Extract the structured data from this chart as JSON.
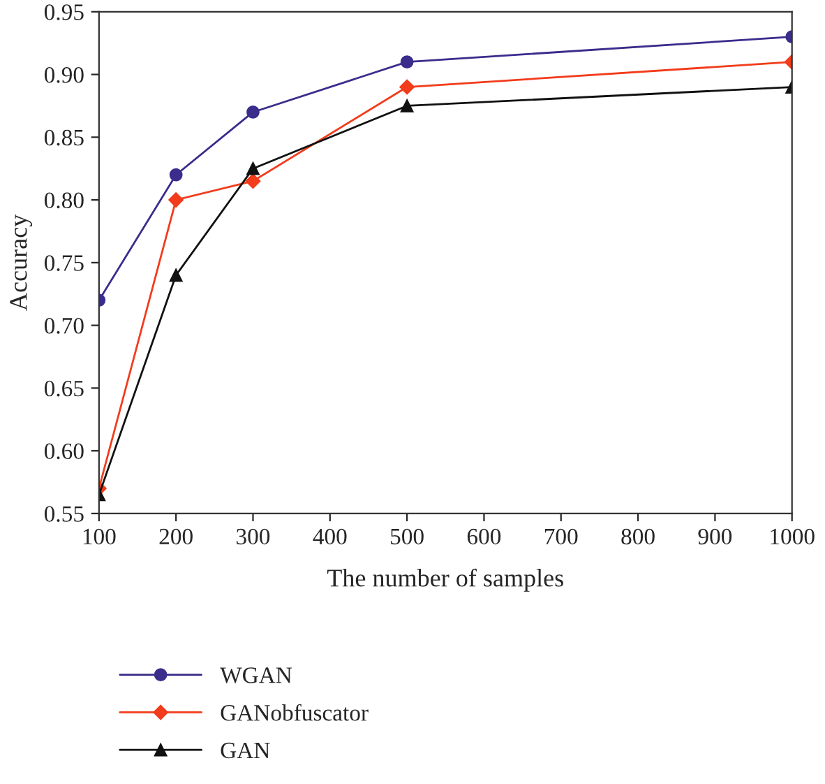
{
  "chart_data": {
    "type": "line",
    "xlabel": "The number of samples",
    "ylabel": "Accuracy",
    "x": [
      100,
      200,
      300,
      500,
      1000
    ],
    "series": [
      {
        "name": "WGAN",
        "color": "#3a2d8c",
        "marker": "circle",
        "values": [
          0.72,
          0.82,
          0.87,
          0.91,
          0.93
        ]
      },
      {
        "name": "GANobfuscator",
        "color": "#f23c1c",
        "marker": "diamond",
        "values": [
          0.57,
          0.8,
          0.815,
          0.89,
          0.91
        ]
      },
      {
        "name": "GAN",
        "color": "#111111",
        "marker": "triangle",
        "values": [
          0.565,
          0.74,
          0.825,
          0.875,
          0.89
        ]
      }
    ],
    "xlim": [
      100,
      1000
    ],
    "xticks": [
      100,
      200,
      300,
      400,
      500,
      600,
      700,
      800,
      900,
      1000
    ],
    "ylim": [
      0.55,
      0.95
    ],
    "yticks": [
      {
        "value": 0.55,
        "label": "0.55"
      },
      {
        "value": 0.6,
        "label": "0.60"
      },
      {
        "value": 0.65,
        "label": "0.65"
      },
      {
        "value": 0.7,
        "label": "0.70"
      },
      {
        "value": 0.75,
        "label": "0.75"
      },
      {
        "value": 0.8,
        "label": "0.80"
      },
      {
        "value": 0.85,
        "label": "0.85"
      },
      {
        "value": 0.9,
        "label": "0.90"
      },
      {
        "value": 0.95,
        "label": "0.95"
      }
    ],
    "grid": false,
    "legend": "bottom left",
    "line_style": "solid"
  }
}
